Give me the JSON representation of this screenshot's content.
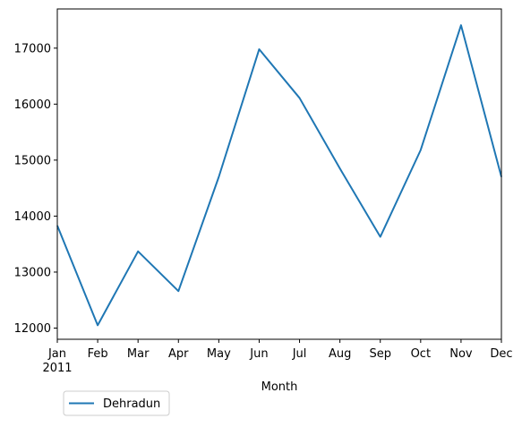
{
  "chart_data": {
    "type": "line",
    "title": "",
    "xlabel": "Month",
    "ylabel": "",
    "x": [
      "Jan",
      "Feb",
      "Mar",
      "Apr",
      "May",
      "Jun",
      "Jul",
      "Aug",
      "Sep",
      "Oct",
      "Nov",
      "Dec"
    ],
    "x_year_label": "2011",
    "ylim": [
      11800,
      17700
    ],
    "yticks": [
      12000,
      13000,
      14000,
      15000,
      16000,
      17000
    ],
    "grid": false,
    "legend_position": "bottom-left, below the axes",
    "series": [
      {
        "name": "Dehradun",
        "color": "#1f77b4",
        "values": [
          13830,
          12050,
          13370,
          12660,
          14700,
          16980,
          16110,
          14850,
          13630,
          15180,
          17410,
          14700
        ]
      }
    ]
  }
}
